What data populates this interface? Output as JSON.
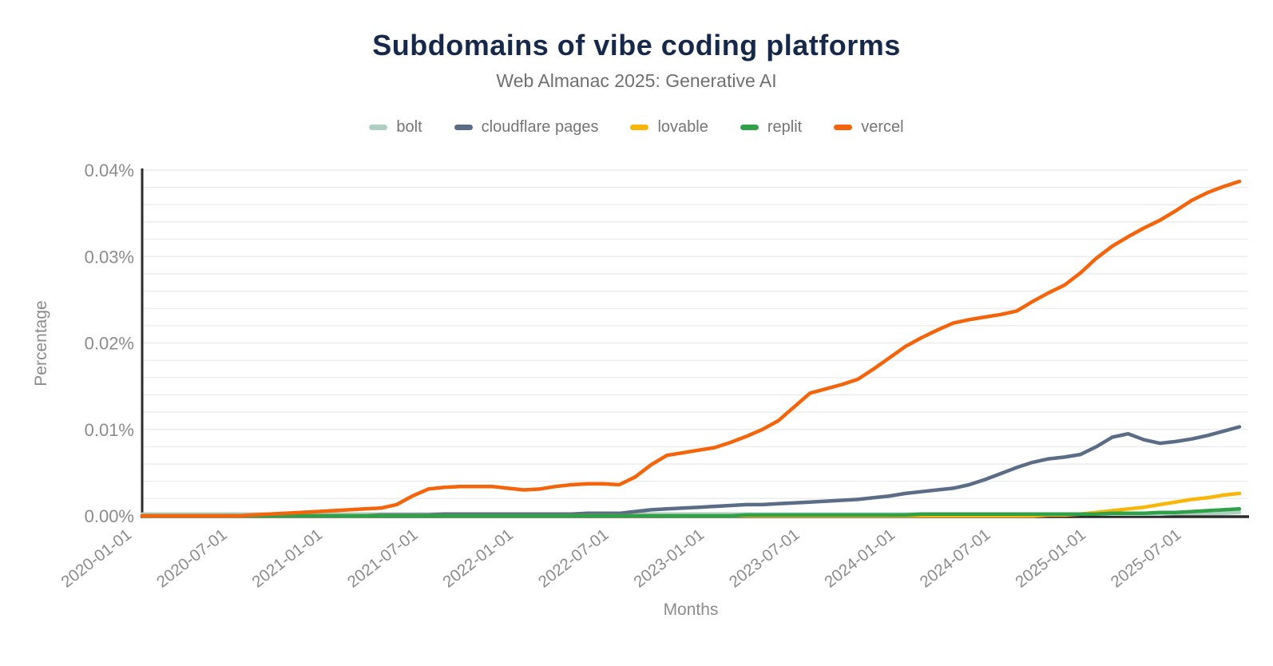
{
  "chart_data": {
    "type": "line",
    "title": "Subdomains of vibe coding platforms",
    "subtitle": "Web Almanac 2025: Generative AI",
    "xlabel": "Months",
    "ylabel": "Percentage",
    "ylim": [
      0,
      0.04
    ],
    "y_unit": "percent",
    "grid": "on",
    "legend_position": "top",
    "y_grid_step": 0.002,
    "y_ticks": [
      {
        "value": 0.0,
        "label": "0.00%"
      },
      {
        "value": 0.01,
        "label": "0.01%"
      },
      {
        "value": 0.02,
        "label": "0.02%"
      },
      {
        "value": 0.03,
        "label": "0.03%"
      },
      {
        "value": 0.04,
        "label": "0.04%"
      }
    ],
    "x_ticks": [
      {
        "index": 0,
        "label": "2020-01-01"
      },
      {
        "index": 6,
        "label": "2020-07-01"
      },
      {
        "index": 12,
        "label": "2021-01-01"
      },
      {
        "index": 18,
        "label": "2021-07-01"
      },
      {
        "index": 24,
        "label": "2022-01-01"
      },
      {
        "index": 30,
        "label": "2022-07-01"
      },
      {
        "index": 36,
        "label": "2023-01-01"
      },
      {
        "index": 42,
        "label": "2023-07-01"
      },
      {
        "index": 48,
        "label": "2024-01-01"
      },
      {
        "index": 54,
        "label": "2024-07-01"
      },
      {
        "index": 60,
        "label": "2025-01-01"
      },
      {
        "index": 66,
        "label": "2025-07-01"
      }
    ],
    "x": [
      "2020-01",
      "2020-02",
      "2020-03",
      "2020-04",
      "2020-05",
      "2020-06",
      "2020-07",
      "2020-08",
      "2020-09",
      "2020-10",
      "2020-11",
      "2020-12",
      "2021-01",
      "2021-02",
      "2021-03",
      "2021-04",
      "2021-05",
      "2021-06",
      "2021-07",
      "2021-08",
      "2021-09",
      "2021-10",
      "2021-11",
      "2021-12",
      "2022-01",
      "2022-02",
      "2022-03",
      "2022-04",
      "2022-05",
      "2022-06",
      "2022-07",
      "2022-08",
      "2022-09",
      "2022-10",
      "2022-11",
      "2022-12",
      "2023-01",
      "2023-02",
      "2023-03",
      "2023-04",
      "2023-05",
      "2023-06",
      "2023-07",
      "2023-08",
      "2023-09",
      "2023-10",
      "2023-11",
      "2023-12",
      "2024-01",
      "2024-02",
      "2024-03",
      "2024-04",
      "2024-05",
      "2024-06",
      "2024-07",
      "2024-08",
      "2024-09",
      "2024-10",
      "2024-11",
      "2024-12",
      "2025-01",
      "2025-02",
      "2025-03",
      "2025-04",
      "2025-05",
      "2025-06",
      "2025-07",
      "2025-08",
      "2025-09",
      "2025-10"
    ],
    "series": [
      {
        "name": "bolt",
        "color": "#aecfc2",
        "values": [
          0.0002,
          0.0002,
          0.0002,
          0.0002,
          0.0002,
          0.0002,
          0.0002,
          0.0002,
          0.0002,
          0.0002,
          0.0002,
          0.0002,
          0.0002,
          0.0002,
          0.0002,
          0.0002,
          0.0002,
          0.0002,
          0.0002,
          0.0002,
          0.0002,
          0.0002,
          0.0002,
          0.0002,
          0.0002,
          0.0002,
          0.0002,
          0.0002,
          0.0002,
          0.0002,
          0.0002,
          0.0002,
          0.0002,
          0.0002,
          0.0002,
          0.0002,
          0.0002,
          0.0002,
          0.0002,
          0.0002,
          0.0002,
          0.0002,
          0.0002,
          0.0002,
          0.0002,
          0.0002,
          0.0002,
          0.0002,
          0.0002,
          0.0002,
          0.0002,
          0.0002,
          0.0002,
          0.0002,
          0.0002,
          0.0002,
          0.0002,
          0.0002,
          0.0002,
          0.0002,
          0.0002,
          0.0002,
          0.0002,
          0.0002,
          0.0002,
          0.0003,
          0.0003,
          0.0003,
          0.0003,
          0.0004
        ]
      },
      {
        "name": "cloudflare pages",
        "color": "#5b6c87",
        "values": [
          0,
          0,
          0,
          0,
          0,
          0,
          0,
          0,
          0,
          0,
          0,
          0,
          0,
          0,
          0,
          0.0001,
          0.0001,
          0.0001,
          0.0001,
          0.0002,
          0.0002,
          0.0002,
          0.0002,
          0.0002,
          0.0002,
          0.0002,
          0.0002,
          0.0002,
          0.0003,
          0.0003,
          0.0003,
          0.0005,
          0.0007,
          0.0008,
          0.0009,
          0.001,
          0.0011,
          0.0012,
          0.0013,
          0.0013,
          0.0014,
          0.0015,
          0.0016,
          0.0017,
          0.0018,
          0.0019,
          0.0021,
          0.0023,
          0.0026,
          0.0028,
          0.003,
          0.0032,
          0.0036,
          0.0042,
          0.0049,
          0.0056,
          0.0062,
          0.0066,
          0.0068,
          0.0071,
          0.008,
          0.0091,
          0.0095,
          0.0088,
          0.0084,
          0.0086,
          0.0089,
          0.0093,
          0.0098,
          0.0103
        ]
      },
      {
        "name": "lovable",
        "color": "#f8b708",
        "values": [
          0,
          0,
          0,
          0,
          0,
          0,
          0,
          0,
          0,
          0,
          0,
          0,
          0,
          0,
          0,
          0,
          0,
          0,
          0,
          0,
          0,
          0,
          0,
          0,
          0,
          0,
          0,
          0,
          0,
          0,
          0,
          0,
          0,
          0,
          0,
          0,
          0,
          0,
          0,
          0,
          0,
          0,
          0,
          0,
          0,
          0,
          0,
          0,
          0,
          0,
          0,
          0,
          0,
          0,
          0,
          0,
          0,
          0.0001,
          0.0001,
          0.0002,
          0.0004,
          0.0006,
          0.0008,
          0.001,
          0.0013,
          0.0016,
          0.0019,
          0.0021,
          0.0024,
          0.0026
        ]
      },
      {
        "name": "replit",
        "color": "#2fa148",
        "values": [
          0,
          0,
          0,
          0,
          0,
          0,
          0,
          0,
          0,
          0,
          0,
          0,
          0,
          0,
          0,
          0,
          0,
          0,
          0,
          0,
          0,
          0,
          0,
          0,
          0,
          0,
          0,
          0,
          0,
          0,
          0,
          0,
          0,
          0,
          0,
          0,
          0,
          0,
          0.0001,
          0.0001,
          0.0001,
          0.0001,
          0.0001,
          0.0001,
          0.0001,
          0.0001,
          0.0001,
          0.0001,
          0.0001,
          0.0002,
          0.0002,
          0.0002,
          0.0002,
          0.0002,
          0.0002,
          0.0002,
          0.0002,
          0.0002,
          0.0002,
          0.0002,
          0.0002,
          0.0003,
          0.0003,
          0.0003,
          0.0004,
          0.0004,
          0.0005,
          0.0006,
          0.0007,
          0.0008
        ]
      },
      {
        "name": "vercel",
        "color": "#f4640a",
        "values": [
          0,
          0,
          0,
          0,
          0,
          0,
          0,
          0.0001,
          0.0002,
          0.0003,
          0.0004,
          0.0005,
          0.0006,
          0.0007,
          0.0008,
          0.0009,
          0.0013,
          0.0023,
          0.0031,
          0.0033,
          0.0034,
          0.0034,
          0.0034,
          0.0032,
          0.003,
          0.0031,
          0.0034,
          0.0036,
          0.0037,
          0.0037,
          0.0036,
          0.0045,
          0.0059,
          0.007,
          0.0073,
          0.0076,
          0.0079,
          0.0085,
          0.0092,
          0.01,
          0.011,
          0.0126,
          0.0142,
          0.0147,
          0.0152,
          0.0158,
          0.017,
          0.0183,
          0.0196,
          0.0206,
          0.0215,
          0.0223,
          0.0227,
          0.023,
          0.0233,
          0.0237,
          0.0248,
          0.0258,
          0.0267,
          0.0281,
          0.0298,
          0.0312,
          0.0323,
          0.0333,
          0.0342,
          0.0353,
          0.0365,
          0.0374,
          0.0381,
          0.0387
        ]
      }
    ],
    "style": {
      "title_color": "#16294a",
      "subtitle_color": "#6f6f6f",
      "legend_text_color": "#757575",
      "axis_line_color": "#2b2b2b",
      "grid_color": "#ececec",
      "tick_label_color": "#8b8b8b"
    }
  }
}
